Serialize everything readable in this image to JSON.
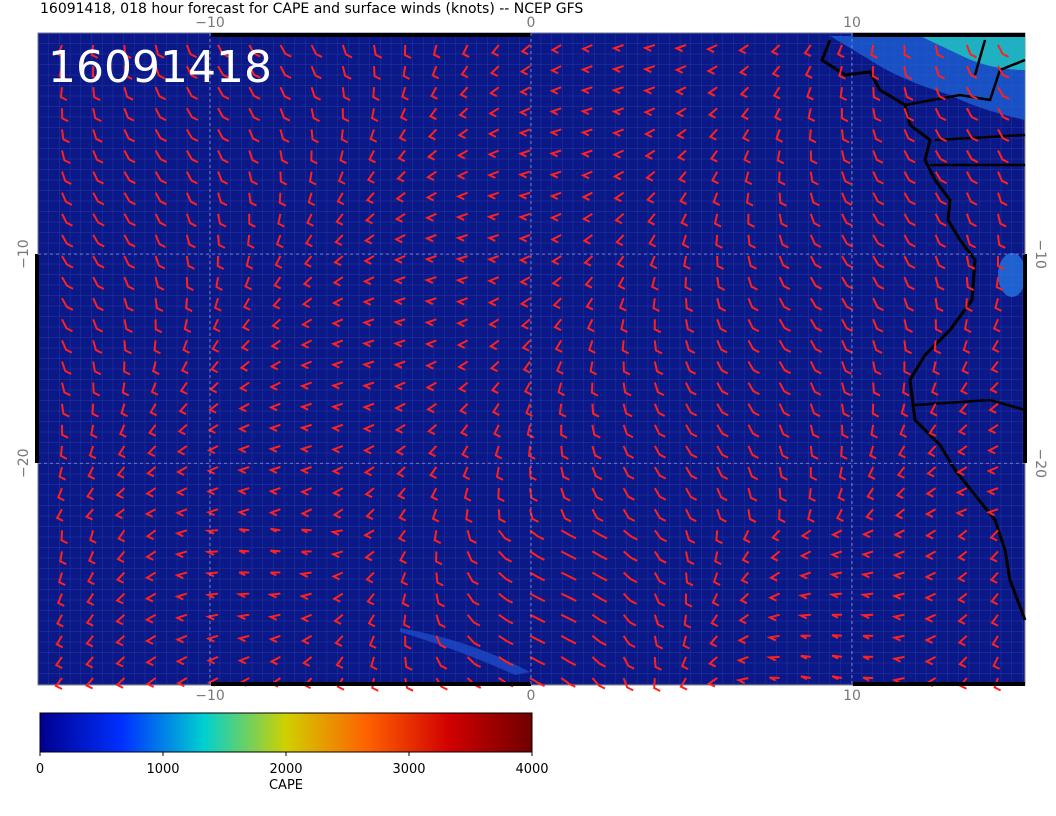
{
  "chart_data": {
    "type": "map",
    "title": "16091418, 018 hour forecast for CAPE and surface winds (knots) -- NCEP GFS",
    "stamp": "16091418",
    "xlim": [
      -15.36,
      15.39
    ],
    "ylim": [
      -30.6,
      0.57
    ],
    "xticks": [
      {
        "value": -10,
        "label": "−10"
      },
      0,
      10
    ],
    "yticks": [
      {
        "value": -10,
        "label": "−10"
      },
      {
        "value": -20,
        "label": "−20"
      }
    ],
    "colorbar": {
      "label": "CAPE",
      "lim": [
        0,
        4000
      ],
      "ticks": [
        0,
        1000,
        2000,
        3000,
        4000
      ],
      "colors": [
        "#00008f",
        "#0030ff",
        "#00d0d0",
        "#d0d000",
        "#ff6000",
        "#d00000",
        "#700000"
      ]
    },
    "background": "#0a1888",
    "barb_color": "#ff2020"
  }
}
